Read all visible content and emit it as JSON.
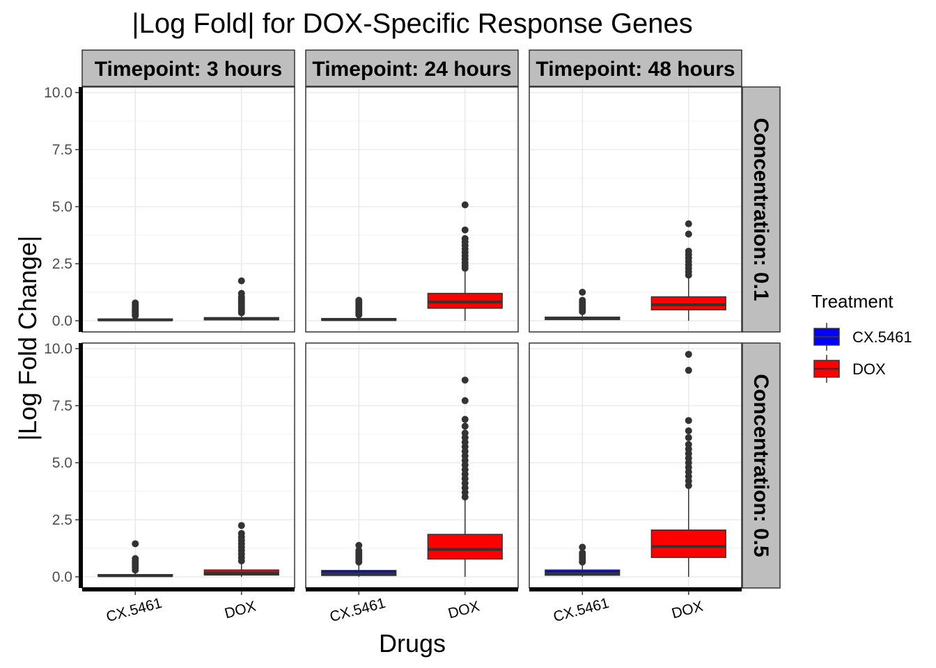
{
  "chart_data": {
    "type": "boxplot",
    "title": "|Log Fold| for DOX-Specific Response Genes",
    "xlabel": "Drugs",
    "ylabel": "|Log Fold Change|",
    "ylim": [
      0,
      10
    ],
    "yticks": [
      "0.0",
      "2.5",
      "5.0",
      "7.5",
      "10.0"
    ],
    "categories": [
      "CX.5461",
      "DOX"
    ],
    "col_facet_labels": [
      "Timepoint: 3 hours",
      "Timepoint: 24 hours",
      "Timepoint: 48 hours"
    ],
    "row_facet_labels": [
      "Concentration: 0.1",
      "Concentration: 0.5"
    ],
    "grid": true,
    "legend": {
      "title": "Treatment",
      "position": "right",
      "entries": [
        {
          "label": "CX.5461",
          "color": "#0000FF"
        },
        {
          "label": "DOX",
          "color": "#FF0000"
        }
      ]
    },
    "panels": [
      {
        "row": 0,
        "col": 0,
        "boxes": [
          {
            "category": "CX.5461",
            "q1": 0.02,
            "median": 0.04,
            "q3": 0.08,
            "whisker_low": 0.0,
            "whisker_high": 0.17,
            "outliers": [
              0.22,
              0.27,
              0.32,
              0.37,
              0.42,
              0.48,
              0.55,
              0.62,
              0.7,
              0.78
            ]
          },
          {
            "category": "DOX",
            "q1": 0.04,
            "median": 0.08,
            "q3": 0.14,
            "whisker_low": 0.0,
            "whisker_high": 0.3,
            "outliers": [
              0.35,
              0.42,
              0.5,
              0.58,
              0.66,
              0.75,
              0.85,
              0.95,
              1.05,
              1.2,
              1.75
            ]
          }
        ]
      },
      {
        "row": 0,
        "col": 1,
        "boxes": [
          {
            "category": "CX.5461",
            "q1": 0.02,
            "median": 0.05,
            "q3": 0.1,
            "whisker_low": 0.0,
            "whisker_high": 0.21,
            "outliers": [
              0.26,
              0.34,
              0.42,
              0.5,
              0.58,
              0.66,
              0.74,
              0.82,
              0.9
            ]
          },
          {
            "category": "DOX",
            "q1": 0.55,
            "median": 0.82,
            "q3": 1.2,
            "whisker_low": 0.0,
            "whisker_high": 2.2,
            "outliers": [
              2.3,
              2.42,
              2.55,
              2.7,
              2.85,
              3.0,
              3.15,
              3.3,
              3.45,
              3.6,
              3.98,
              5.08
            ]
          }
        ]
      },
      {
        "row": 0,
        "col": 2,
        "boxes": [
          {
            "category": "CX.5461",
            "q1": 0.05,
            "median": 0.1,
            "q3": 0.16,
            "whisker_low": 0.0,
            "whisker_high": 0.33,
            "outliers": [
              0.4,
              0.5,
              0.6,
              0.7,
              0.8,
              0.9,
              1.25
            ]
          },
          {
            "category": "DOX",
            "q1": 0.48,
            "median": 0.7,
            "q3": 1.05,
            "whisker_low": 0.0,
            "whisker_high": 1.9,
            "outliers": [
              2.0,
              2.15,
              2.3,
              2.45,
              2.6,
              2.75,
              2.9,
              3.05,
              3.8,
              4.25
            ]
          }
        ]
      },
      {
        "row": 1,
        "col": 0,
        "boxes": [
          {
            "category": "CX.5461",
            "q1": 0.03,
            "median": 0.05,
            "q3": 0.1,
            "whisker_low": 0.0,
            "whisker_high": 0.22,
            "outliers": [
              0.3,
              0.4,
              0.5,
              0.6,
              0.7,
              0.8,
              1.45
            ]
          },
          {
            "category": "DOX",
            "q1": 0.08,
            "median": 0.16,
            "q3": 0.3,
            "whisker_low": 0.0,
            "whisker_high": 0.62,
            "outliers": [
              0.7,
              0.85,
              1.0,
              1.15,
              1.3,
              1.45,
              1.6,
              1.75,
              1.9,
              2.25
            ]
          }
        ]
      },
      {
        "row": 1,
        "col": 1,
        "boxes": [
          {
            "category": "CX.5461",
            "q1": 0.06,
            "median": 0.14,
            "q3": 0.28,
            "whisker_low": 0.0,
            "whisker_high": 0.58,
            "outliers": [
              0.65,
              0.75,
              0.85,
              0.95,
              1.05,
              1.15,
              1.38
            ]
          },
          {
            "category": "DOX",
            "q1": 0.78,
            "median": 1.2,
            "q3": 1.86,
            "whisker_low": 0.0,
            "whisker_high": 3.4,
            "outliers": [
              3.5,
              3.7,
              3.9,
              4.1,
              4.3,
              4.5,
              4.7,
              4.9,
              5.1,
              5.3,
              5.5,
              5.7,
              5.9,
              6.1,
              6.3,
              6.6,
              6.9,
              7.72,
              8.62
            ]
          }
        ]
      },
      {
        "row": 1,
        "col": 2,
        "boxes": [
          {
            "category": "CX.5461",
            "q1": 0.07,
            "median": 0.15,
            "q3": 0.3,
            "whisker_low": 0.0,
            "whisker_high": 0.58,
            "outliers": [
              0.65,
              0.75,
              0.85,
              0.95,
              1.05,
              1.3
            ]
          },
          {
            "category": "DOX",
            "q1": 0.85,
            "median": 1.33,
            "q3": 2.05,
            "whisker_low": 0.0,
            "whisker_high": 3.9,
            "outliers": [
              4.0,
              4.2,
              4.4,
              4.6,
              4.8,
              5.0,
              5.2,
              5.4,
              5.6,
              5.8,
              6.1,
              6.4,
              6.85,
              9.05,
              9.75
            ]
          }
        ]
      }
    ]
  }
}
